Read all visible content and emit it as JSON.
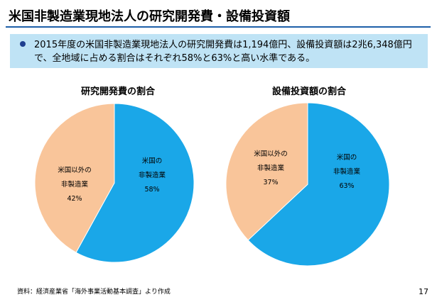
{
  "title": "米国非製造業現地法人の研究開発費・設備投資額",
  "summary": "2015年度の米国非製造業現地法人の研究開発費は1,194億円、設備投資額は2兆6,348億円で、全地域に占める割合はそれぞれ58%と63%と高い水準である。",
  "source": "資料：経済産業省「海外事業活動基本調査」より作成",
  "page_number": "17",
  "colors": {
    "accent_rule": "#1e5fa8",
    "summary_bg": "#bfe3f5",
    "bullet": "#1f3f8f"
  },
  "chart_data": [
    {
      "type": "pie",
      "title": "研究開発費の割合",
      "slices": [
        {
          "label_lines": [
            "米国の",
            "非製造業"
          ],
          "value": 58,
          "value_label": "58%",
          "color": "#1aa7e8"
        },
        {
          "label_lines": [
            "米国以外の",
            "非製造業"
          ],
          "value": 42,
          "value_label": "42%",
          "color": "#f9c59a"
        }
      ]
    },
    {
      "type": "pie",
      "title": "設備投資額の割合",
      "slices": [
        {
          "label_lines": [
            "米国の",
            "非製造業"
          ],
          "value": 63,
          "value_label": "63%",
          "color": "#1aa7e8"
        },
        {
          "label_lines": [
            "米国以外の",
            "非製造業"
          ],
          "value": 37,
          "value_label": "37%",
          "color": "#f9c59a"
        }
      ]
    }
  ]
}
